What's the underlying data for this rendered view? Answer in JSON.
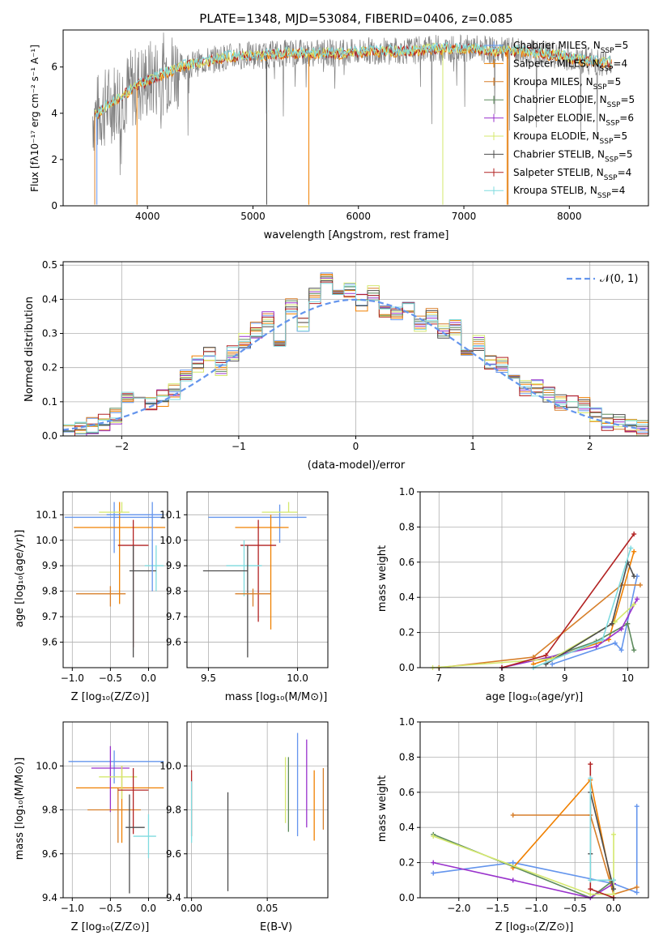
{
  "colors": [
    "#6495ED",
    "#F08000",
    "#D77F2A",
    "#5C8A5C",
    "#9932CC",
    "#D4E86E",
    "#4D4D4D",
    "#B22222",
    "#7FDBDF"
  ],
  "flux_panel": {
    "title": "PLATE=1348, MJD=53084, FIBERID=0406, z=0.085",
    "xlabel": "wavelength [Angstrom, rest frame]",
    "ylabel": "Flux [fλ10⁻¹⁷ erg cm⁻² s⁻¹ A⁻¹]",
    "legend": [
      "Chabrier MILES, N_SSP=5",
      "Salpeter MILES, N_SSP=4",
      "Kroupa MILES, N_SSP=5",
      "Chabrier ELODIE, N_SSP=5",
      "Salpeter ELODIE, N_SSP=6",
      "Kroupa ELODIE, N_SSP=5",
      "Chabrier STELIB, N_SSP=5",
      "Salpeter STELIB, N_SSP=4",
      "Kroupa STELIB, N_SSP=4"
    ]
  },
  "residual_panel": {
    "xlabel": "(data-model)/error",
    "ylabel": "Normed distribution",
    "legend": "𝒩(0, 1)"
  },
  "age_z_panel": {
    "xlabel": "Z [log₁₀(Z/Z⊙)]",
    "ylabel": "age  [log₁₀(age/yr)]"
  },
  "age_mass_panel": {
    "xlabel": "mass [log₁₀(M/M⊙)]"
  },
  "weight_age_panel": {
    "xlabel": "age  [log₁₀(age/yr)]",
    "ylabel": "mass weight"
  },
  "mass_z_panel": {
    "xlabel": "Z [log₁₀(Z/Z⊙)]",
    "ylabel": "mass [log₁₀(M/M⊙)]"
  },
  "mass_ebv_panel": {
    "xlabel": "E(B-V)"
  },
  "weight_z_panel": {
    "xlabel": "Z [log₁₀(Z/Z⊙)]",
    "ylabel": "mass weight"
  },
  "chart_data": [
    {
      "type": "line",
      "title": "PLATE=1348, MJD=53084, FIBERID=0406, z=0.085",
      "xlabel": "wavelength [Angstrom, rest frame]",
      "ylabel": "Flux",
      "xlim": [
        3200,
        8750
      ],
      "ylim": [
        0,
        7.6
      ],
      "xticks": [
        4000,
        5000,
        6000,
        7000,
        8000
      ],
      "yticks": [
        0,
        2,
        4,
        6
      ],
      "continuum": {
        "x": [
          3500,
          3700,
          3900,
          4100,
          4300,
          4500,
          4700,
          4900,
          5100,
          5300,
          5500,
          5700,
          5900,
          6100,
          6300,
          6500,
          6700,
          6900,
          7100,
          7300,
          7500,
          7700,
          7900,
          8100,
          8300
        ],
        "y": [
          3.9,
          4.6,
          5.2,
          5.6,
          6.0,
          6.2,
          6.4,
          6.5,
          6.5,
          6.6,
          6.6,
          6.6,
          6.6,
          6.7,
          6.7,
          6.7,
          6.8,
          6.8,
          6.8,
          6.7,
          6.7,
          6.6,
          6.5,
          6.3,
          6.2
        ]
      }
    },
    {
      "type": "bar",
      "xlabel": "(data-model)/error",
      "ylabel": "Normed distribution",
      "xlim": [
        -2.5,
        2.5
      ],
      "ylim": [
        0,
        0.51
      ],
      "xticks": [
        -2,
        -1,
        0,
        1,
        2
      ],
      "yticks": [
        0.0,
        0.1,
        0.2,
        0.3,
        0.4,
        0.5
      ],
      "bin_edges": [
        -2.5,
        -2.4,
        -2.3,
        -2.2,
        -2.1,
        -2.0,
        -1.9,
        -1.8,
        -1.7,
        -1.6,
        -1.5,
        -1.4,
        -1.3,
        -1.2,
        -1.1,
        -1.0,
        -0.9,
        -0.8,
        -0.7,
        -0.6,
        -0.5,
        -0.4,
        -0.3,
        -0.2,
        -0.1,
        0.0,
        0.1,
        0.2,
        0.3,
        0.4,
        0.5,
        0.6,
        0.7,
        0.8,
        0.9,
        1.0,
        1.1,
        1.2,
        1.3,
        1.4,
        1.5,
        1.6,
        1.7,
        1.8,
        1.9,
        2.0,
        2.1,
        2.2,
        2.3,
        2.4,
        2.5
      ],
      "histogram": [
        0.02,
        0.02,
        0.03,
        0.04,
        0.06,
        0.11,
        0.09,
        0.1,
        0.11,
        0.13,
        0.17,
        0.21,
        0.24,
        0.2,
        0.24,
        0.28,
        0.31,
        0.34,
        0.26,
        0.38,
        0.32,
        0.41,
        0.46,
        0.42,
        0.43,
        0.39,
        0.42,
        0.37,
        0.36,
        0.38,
        0.33,
        0.35,
        0.31,
        0.32,
        0.26,
        0.27,
        0.22,
        0.21,
        0.18,
        0.14,
        0.14,
        0.12,
        0.1,
        0.1,
        0.09,
        0.06,
        0.04,
        0.04,
        0.03,
        0.02
      ],
      "reference_curve": {
        "name": "𝒩(0, 1)",
        "mean": 0,
        "sigma": 1
      }
    },
    {
      "type": "scatter",
      "xlabel": "Z [log₁₀(Z/Z⊙)]",
      "ylabel": "age  [log₁₀(age/yr)]",
      "xlim": [
        -1.12,
        0.25
      ],
      "ylim": [
        9.5,
        10.19
      ],
      "xticks": [
        -1.0,
        -0.5,
        0.0
      ],
      "yticks": [
        9.6,
        9.7,
        9.8,
        9.9,
        10.0,
        10.1
      ],
      "points": [
        {
          "x": -0.45,
          "y": 10.09,
          "xerr": [
            0.65,
            0.65
          ],
          "yerr": [
            0.14,
            0.06
          ],
          "c": 0
        },
        {
          "x": -0.38,
          "y": 10.05,
          "xerr": [
            0.6,
            0.6
          ],
          "yerr": [
            0.3,
            0.1
          ],
          "c": 1
        },
        {
          "x": -0.2,
          "y": 9.98,
          "xerr": [
            0.2,
            0.2
          ],
          "yerr": [
            0.4,
            0.1
          ],
          "c": 7
        },
        {
          "x": 0.1,
          "y": 9.9,
          "xerr": [
            0.15,
            0.1
          ],
          "yerr": [
            0.1,
            0.08
          ],
          "c": 8
        },
        {
          "x": -0.5,
          "y": 9.79,
          "xerr": [
            0.45,
            0.2
          ],
          "yerr": [
            0.05,
            0.03
          ],
          "c": 2
        },
        {
          "x": -0.2,
          "y": 9.88,
          "xerr": [
            0.05,
            0.3
          ],
          "yerr": [
            0.34,
            0.1
          ],
          "c": 6
        },
        {
          "x": -0.35,
          "y": 10.11,
          "xerr": [
            0.3,
            0.1
          ],
          "yerr": [
            0.0,
            0.04
          ],
          "c": 5
        },
        {
          "x": 0.05,
          "y": 10.1,
          "xerr": [
            0.6,
            0.15
          ],
          "yerr": [
            0.3,
            0.05
          ],
          "c": 0
        }
      ]
    },
    {
      "type": "scatter",
      "xlabel": "mass [log₁₀(M/M⊙)]",
      "xlim": [
        9.38,
        10.17
      ],
      "ylim": [
        9.5,
        10.19
      ],
      "xticks": [
        9.5,
        10.0
      ],
      "yticks": [
        9.6,
        9.7,
        9.8,
        9.9,
        10.0,
        10.1
      ],
      "points": [
        {
          "x": 9.9,
          "y": 10.09,
          "xerr": [
            0.4,
            0.15
          ],
          "yerr": [
            0.1,
            0.05
          ],
          "c": 0
        },
        {
          "x": 9.85,
          "y": 10.05,
          "xerr": [
            0.2,
            0.1
          ],
          "yerr": [
            0.4,
            0.05
          ],
          "c": 1
        },
        {
          "x": 9.78,
          "y": 9.98,
          "xerr": [
            0.1,
            0.1
          ],
          "yerr": [
            0.3,
            0.1
          ],
          "c": 7
        },
        {
          "x": 9.7,
          "y": 9.9,
          "xerr": [
            0.1,
            0.1
          ],
          "yerr": [
            0.12,
            0.1
          ],
          "c": 8
        },
        {
          "x": 9.72,
          "y": 9.88,
          "xerr": [
            0.25,
            0.0
          ],
          "yerr": [
            0.34,
            0.1
          ],
          "c": 6
        },
        {
          "x": 9.75,
          "y": 9.79,
          "xerr": [
            0.1,
            0.1
          ],
          "yerr": [
            0.05,
            0.02
          ],
          "c": 2
        },
        {
          "x": 9.95,
          "y": 10.11,
          "xerr": [
            0.15,
            0.05
          ],
          "yerr": [
            0.0,
            0.04
          ],
          "c": 5
        }
      ]
    },
    {
      "type": "line",
      "xlabel": "age  [log₁₀(age/yr)]",
      "ylabel": "mass weight",
      "xlim": [
        6.7,
        10.33
      ],
      "ylim": [
        0,
        1.0
      ],
      "xticks": [
        7,
        8,
        9,
        10
      ],
      "yticks": [
        0.0,
        0.2,
        0.4,
        0.6,
        0.8,
        1.0
      ],
      "series": [
        {
          "c": 0,
          "x": [
            8.8,
            9.8,
            9.9,
            10.15
          ],
          "y": [
            0.02,
            0.14,
            0.1,
            0.52
          ]
        },
        {
          "c": 1,
          "x": [
            8.5,
            9.7,
            10.1
          ],
          "y": [
            0.02,
            0.16,
            0.66
          ]
        },
        {
          "c": 2,
          "x": [
            7.0,
            8.5,
            9.9,
            10.2
          ],
          "y": [
            0.0,
            0.06,
            0.47,
            0.47
          ]
        },
        {
          "c": 3,
          "x": [
            8.7,
            9.5,
            10.0,
            10.1
          ],
          "y": [
            0.05,
            0.15,
            0.25,
            0.1
          ]
        },
        {
          "c": 4,
          "x": [
            8.0,
            9.5,
            9.9,
            10.15
          ],
          "y": [
            0.0,
            0.12,
            0.22,
            0.39
          ]
        },
        {
          "c": 5,
          "x": [
            6.9,
            8.8,
            9.8,
            10.1
          ],
          "y": [
            0.0,
            0.05,
            0.26,
            0.36
          ]
        },
        {
          "c": 6,
          "x": [
            8.7,
            9.75,
            10.0,
            10.1
          ],
          "y": [
            0.02,
            0.25,
            0.6,
            0.52
          ]
        },
        {
          "c": 7,
          "x": [
            8.0,
            8.7,
            10.1
          ],
          "y": [
            0.0,
            0.07,
            0.76
          ]
        },
        {
          "c": 8,
          "x": [
            8.5,
            9.6,
            10.05
          ],
          "y": [
            0.0,
            0.16,
            0.68
          ]
        }
      ]
    },
    {
      "type": "scatter",
      "xlabel": "Z [log₁₀(Z/Z⊙)]",
      "ylabel": "mass [log₁₀(M/M⊙)]",
      "xlim": [
        -1.12,
        0.25
      ],
      "ylim": [
        9.4,
        10.2
      ],
      "xticks": [
        -1.0,
        -0.5,
        0.0
      ],
      "yticks": [
        9.4,
        9.6,
        9.8,
        10.0
      ],
      "points": [
        {
          "x": -0.45,
          "y": 10.02,
          "xerr": [
            0.6,
            0.65
          ],
          "yerr": [
            0.1,
            0.05
          ],
          "c": 0
        },
        {
          "x": -0.35,
          "y": 9.9,
          "xerr": [
            0.6,
            0.55
          ],
          "yerr": [
            0.25,
            0.1
          ],
          "c": 1
        },
        {
          "x": -0.5,
          "y": 9.99,
          "xerr": [
            0.25,
            0.25
          ],
          "yerr": [
            0.2,
            0.1
          ],
          "c": 4
        },
        {
          "x": -0.35,
          "y": 9.95,
          "xerr": [
            0.3,
            0.2
          ],
          "yerr": [
            0.1,
            0.05
          ],
          "c": 5
        },
        {
          "x": -0.4,
          "y": 9.8,
          "xerr": [
            0.4,
            0.3
          ],
          "yerr": [
            0.15,
            0.1
          ],
          "c": 2
        },
        {
          "x": -0.2,
          "y": 9.89,
          "xerr": [
            0.2,
            0.2
          ],
          "yerr": [
            0.2,
            0.1
          ],
          "c": 7
        },
        {
          "x": -0.25,
          "y": 9.72,
          "xerr": [
            0.05,
            0.2
          ],
          "yerr": [
            0.3,
            0.15
          ],
          "c": 6
        },
        {
          "x": 0.0,
          "y": 9.68,
          "xerr": [
            0.2,
            0.1
          ],
          "yerr": [
            0.1,
            0.1
          ],
          "c": 8
        }
      ]
    },
    {
      "type": "scatter",
      "xlabel": "E(B-V)",
      "xlim": [
        -0.003,
        0.09
      ],
      "ylim": [
        9.4,
        10.2
      ],
      "xticks": [
        0.0,
        0.05
      ],
      "yticks": [
        9.4,
        9.6,
        9.8,
        10.0
      ],
      "points": [
        {
          "x": 0.0,
          "y": 9.83,
          "yerr": [
            0.15,
            0.15
          ],
          "c": 7
        },
        {
          "x": 0.0,
          "y": 9.8,
          "yerr": [
            0.15,
            0.13
          ],
          "c": 8
        },
        {
          "x": 0.024,
          "y": 9.66,
          "yerr": [
            0.23,
            0.22
          ],
          "c": 6
        },
        {
          "x": 0.062,
          "y": 9.89,
          "yerr": [
            0.15,
            0.15
          ],
          "c": 5
        },
        {
          "x": 0.064,
          "y": 9.87,
          "yerr": [
            0.17,
            0.17
          ],
          "c": 3
        },
        {
          "x": 0.07,
          "y": 9.92,
          "yerr": [
            0.24,
            0.23
          ],
          "c": 0
        },
        {
          "x": 0.076,
          "y": 9.92,
          "yerr": [
            0.2,
            0.2
          ],
          "c": 4
        },
        {
          "x": 0.081,
          "y": 9.82,
          "yerr": [
            0.16,
            0.16
          ],
          "c": 1
        },
        {
          "x": 0.087,
          "y": 9.85,
          "yerr": [
            0.14,
            0.14
          ],
          "c": 2
        }
      ]
    },
    {
      "type": "line",
      "xlabel": "Z [log₁₀(Z/Z⊙)]",
      "ylabel": "mass weight",
      "xlim": [
        -2.5,
        0.45
      ],
      "ylim": [
        0,
        1.0
      ],
      "xticks": [
        -2.0,
        -1.5,
        -1.0,
        -0.5,
        0.0
      ],
      "yticks": [
        0.0,
        0.2,
        0.4,
        0.6,
        0.8,
        1.0
      ],
      "series": [
        {
          "c": 0,
          "x": [
            -2.33,
            -1.3,
            0.0,
            0.3,
            0.3
          ],
          "y": [
            0.14,
            0.2,
            0.08,
            0.03,
            0.52
          ]
        },
        {
          "c": 1,
          "x": [
            -1.3,
            -0.3,
            0.0
          ],
          "y": [
            0.17,
            0.67,
            0.02
          ]
        },
        {
          "c": 2,
          "x": [
            -1.3,
            -0.3,
            0.0,
            0.3
          ],
          "y": [
            0.47,
            0.47,
            0.02,
            0.06
          ]
        },
        {
          "c": 3,
          "x": [
            -2.33,
            -0.3,
            0.0
          ],
          "y": [
            0.36,
            0.0,
            0.1
          ]
        },
        {
          "c": 4,
          "x": [
            -2.33,
            -1.3,
            -0.3,
            0.0
          ],
          "y": [
            0.2,
            0.1,
            0.0,
            0.08
          ]
        },
        {
          "c": 5,
          "x": [
            -2.33,
            -0.3,
            0.0,
            0.0
          ],
          "y": [
            0.35,
            0.02,
            0.02,
            0.36
          ]
        },
        {
          "c": 6,
          "x": [
            -0.3,
            -0.3,
            0.0
          ],
          "y": [
            0.25,
            0.6,
            0.05
          ]
        },
        {
          "c": 7,
          "x": [
            -0.3,
            -0.3,
            0.0
          ],
          "y": [
            0.76,
            0.05,
            0.0
          ]
        },
        {
          "c": 8,
          "x": [
            -0.3,
            -0.3,
            0.0
          ],
          "y": [
            0.68,
            0.1,
            0.1
          ]
        }
      ]
    }
  ]
}
